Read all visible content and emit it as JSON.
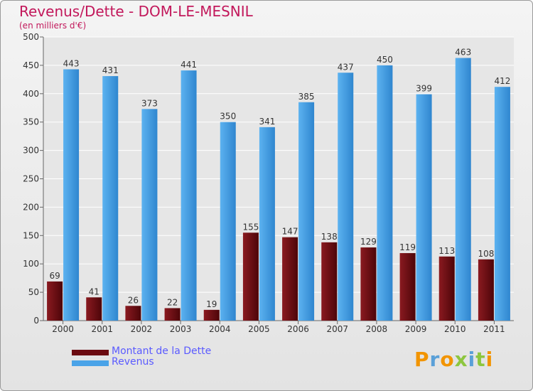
{
  "header": {
    "title": "Revenus/Dette - DOM-LE-MESNIL",
    "subtitle": "(en milliers d'€)"
  },
  "logo": {
    "letters": [
      "P",
      "r",
      "o",
      "x",
      "i",
      "t",
      "i"
    ],
    "colors": [
      "#f29400",
      "#5aa0d8",
      "#f29400",
      "#8dc63f",
      "#5aa0d8",
      "#8dc63f",
      "#f29400"
    ]
  },
  "colors": {
    "dette": "#6b0a10",
    "revenus": "#4aa3e8",
    "title": "#c2185b",
    "legend_text": "#5a5aff"
  },
  "chart_data": {
    "type": "bar",
    "title": "Revenus/Dette - DOM-LE-MESNIL",
    "subtitle": "(en milliers d'€)",
    "xlabel": "",
    "ylabel": "",
    "ylim": [
      0,
      500
    ],
    "yticks": [
      0,
      50,
      100,
      150,
      200,
      250,
      300,
      350,
      400,
      450,
      500
    ],
    "grid": true,
    "legend_position": "bottom-left",
    "categories": [
      "2000",
      "2001",
      "2002",
      "2003",
      "2004",
      "2005",
      "2006",
      "2007",
      "2008",
      "2009",
      "2010",
      "2011"
    ],
    "series": [
      {
        "name": "Montant de la Dette",
        "color": "#6b0a10",
        "values": [
          69,
          41,
          26,
          22,
          19,
          155,
          147,
          138,
          129,
          119,
          113,
          108
        ]
      },
      {
        "name": "Revenus",
        "color": "#4aa3e8",
        "values": [
          443,
          431,
          373,
          441,
          350,
          341,
          385,
          437,
          450,
          399,
          463,
          412
        ]
      }
    ]
  }
}
